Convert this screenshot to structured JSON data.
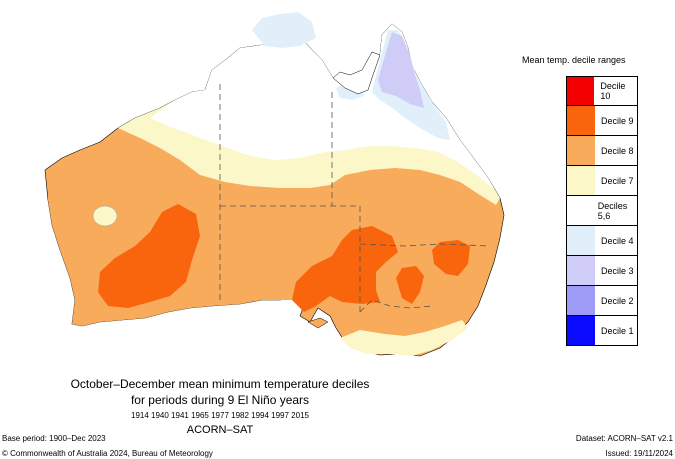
{
  "legend": {
    "title": "Mean temp. decile ranges",
    "items": [
      {
        "label": "Decile 10",
        "color": "#f30000"
      },
      {
        "label": "Decile 9",
        "color": "#f9650c"
      },
      {
        "label": "Decile 8",
        "color": "#f8ab5b"
      },
      {
        "label": "Decile 7",
        "color": "#fcf7c8"
      },
      {
        "label": "Deciles 5,6",
        "color": "#ffffff"
      },
      {
        "label": "Decile 4",
        "color": "#e1effa"
      },
      {
        "label": "Decile 3",
        "color": "#cfcdf8"
      },
      {
        "label": "Decile 2",
        "color": "#9d9bf5"
      },
      {
        "label": "Decile 1",
        "color": "#0a0aff"
      }
    ]
  },
  "title": {
    "line1": "October–December mean minimum temperature deciles",
    "line2": "for periods during 9 El Niño years",
    "years": "1914 1940 1941 1965 1977 1982 1994 1997 2015",
    "dataset_name": "ACORN–SAT"
  },
  "footer": {
    "base_period": "Base period: 1900–Dec 2023",
    "copyright": "© Commonwealth of Australia 2024, Bureau of Meteorology",
    "dataset": "Dataset: ACORN–SAT v2.1",
    "issued": "Issued: 19/11/2024"
  }
}
